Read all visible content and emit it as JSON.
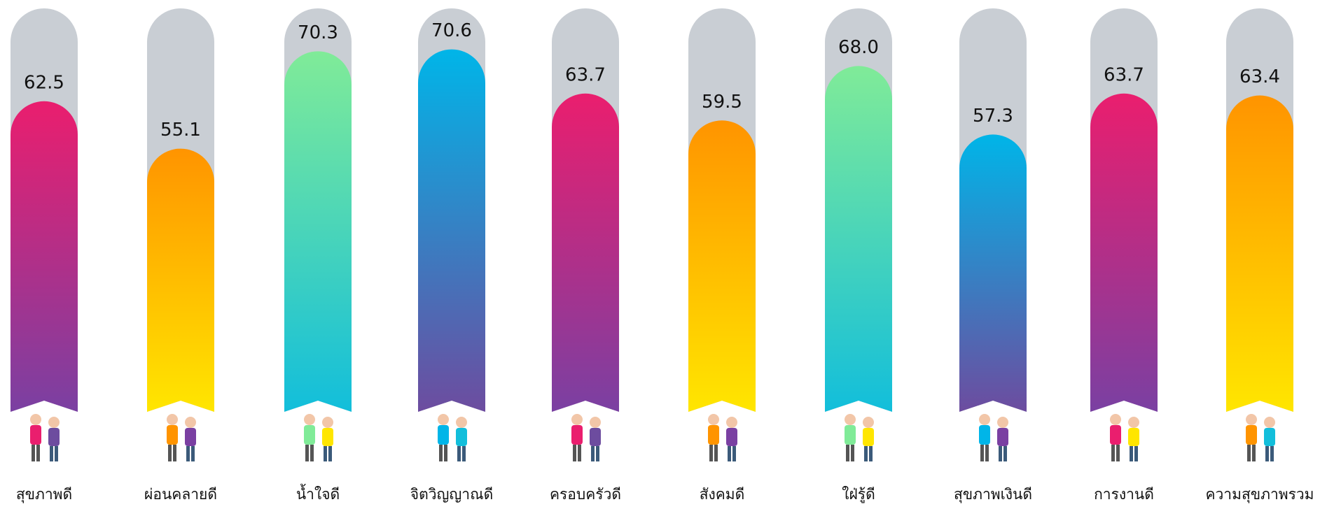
{
  "chart_data": {
    "type": "bar",
    "categories": [
      "สุขภาพดี",
      "ผ่อนคลายดี",
      "น้ำใจดี",
      "จิตวิญญาณดี",
      "ครอบครัวดี",
      "สังคมดี",
      "ใฝ่รู้ดี",
      "สุขภาพเงินดี",
      "การงานดี",
      "ความสุขภาพรวม"
    ],
    "values": [
      62.5,
      55.1,
      70.3,
      70.6,
      63.7,
      59.5,
      68.0,
      57.3,
      63.7,
      63.4
    ],
    "value_labels": [
      "62.5",
      "55.1",
      "70.3",
      "70.6",
      "63.7",
      "59.5",
      "68.0",
      "57.3",
      "63.7",
      "63.4"
    ],
    "colors": [
      [
        "#ea1e6e",
        "#7a40a2"
      ],
      [
        "#ff9400",
        "#ffe600"
      ],
      [
        "#80eb98",
        "#12bedb"
      ],
      [
        "#00b5e8",
        "#6d4c9f"
      ],
      [
        "#ea1e6e",
        "#7a40a2"
      ],
      [
        "#ff9400",
        "#ffe600"
      ],
      [
        "#80eb98",
        "#12bedb"
      ],
      [
        "#00b5e8",
        "#6d4c9f"
      ],
      [
        "#ea1e6e",
        "#7a40a2"
      ],
      [
        "#ff9400",
        "#ffe600"
      ]
    ],
    "track_color": "#c9ced4",
    "ylim": [
      14,
      77
    ]
  }
}
